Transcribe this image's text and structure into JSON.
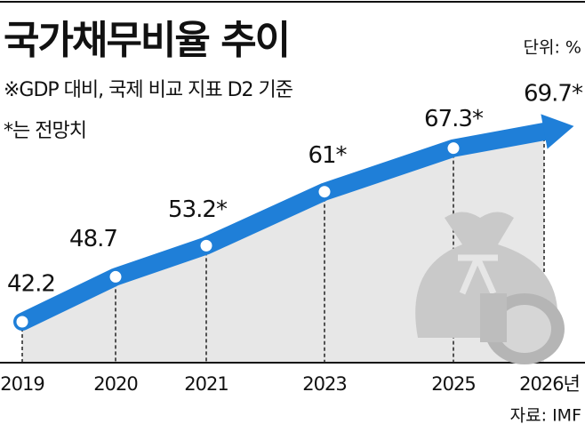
{
  "chart_data": {
    "type": "line",
    "title": "국가채무비율 추이",
    "unit": "단위: %",
    "note": "※GDP 대비, 국제 비교 지표 D2 기준",
    "forecast_note": "*는 전망치",
    "source": "자료: IMF",
    "categories": [
      "2019",
      "2020",
      "2021",
      "2023",
      "2025",
      "2026년"
    ],
    "values": [
      42.2,
      48.7,
      53.2,
      61,
      67.3,
      69.7
    ],
    "value_labels": [
      "42.2",
      "48.7",
      "53.2*",
      "61*",
      "67.3*",
      "69.7*"
    ],
    "color": "#1f7fd8"
  }
}
